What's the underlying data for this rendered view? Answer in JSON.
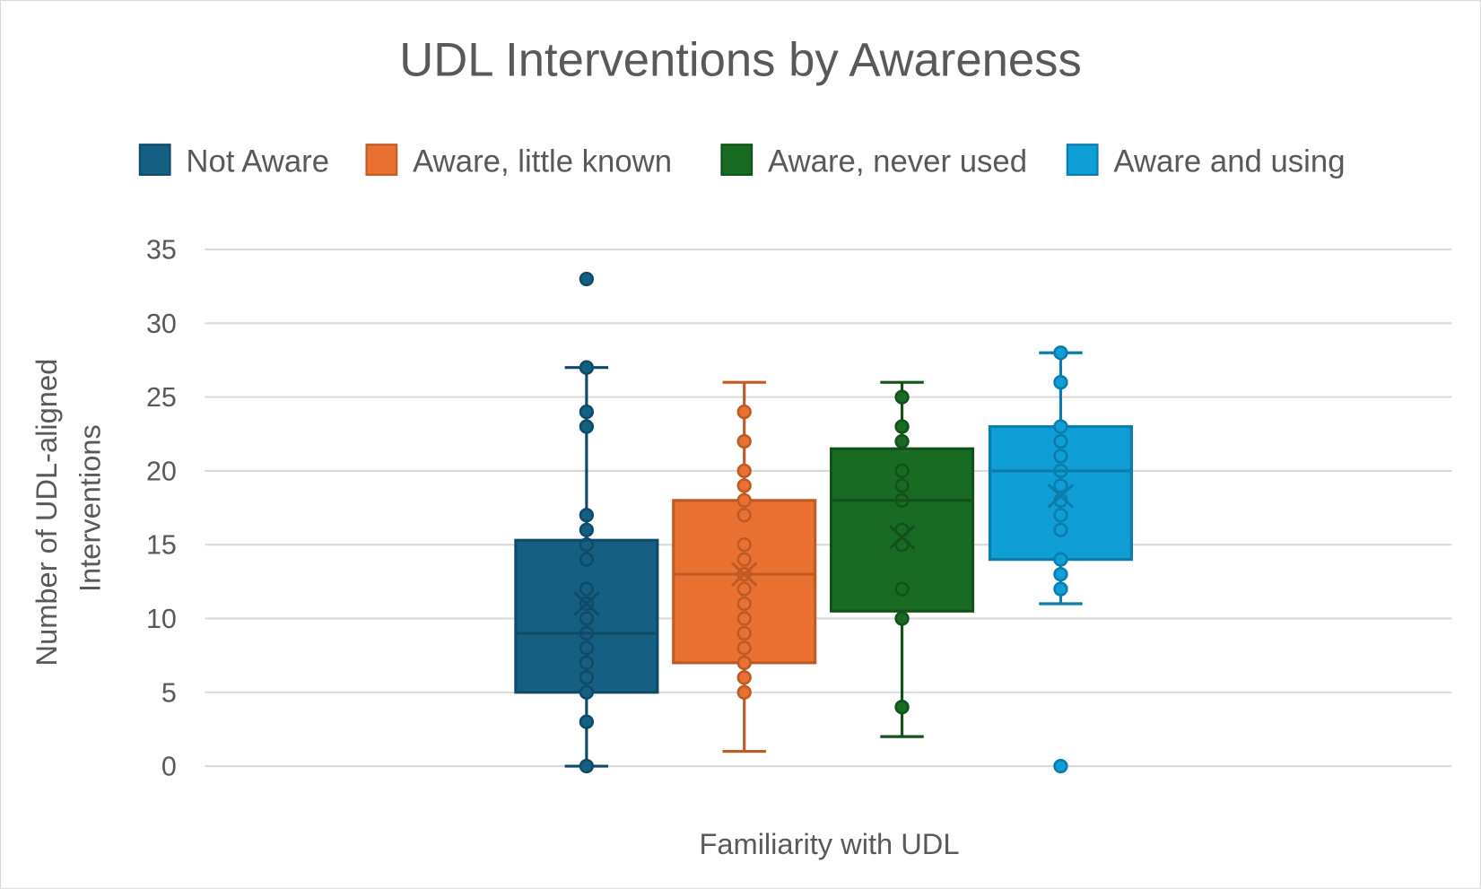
{
  "chart_data": {
    "type": "box",
    "title": "UDL Interventions by Awareness",
    "xlabel": "Familiarity with UDL",
    "ylabel": [
      "Number of UDL-aligned",
      "Interventions"
    ],
    "ylim": [
      0,
      35
    ],
    "yticks": [
      0,
      5,
      10,
      15,
      20,
      25,
      30,
      35
    ],
    "grid": true,
    "legend_position": "top",
    "series": [
      {
        "name": "Not Aware",
        "color": "#156082",
        "edge": "#0f4b67",
        "min": 0,
        "q1": 5,
        "median": 9,
        "q3": 15.3,
        "max": 27,
        "mean": 11,
        "points": [
          0,
          3,
          5,
          6,
          7,
          8,
          9,
          10,
          11,
          12,
          14,
          15,
          16,
          17,
          23,
          24,
          27
        ],
        "outliers": [
          33
        ]
      },
      {
        "name": "Aware, little known",
        "color": "#e97132",
        "edge": "#bf5a26",
        "min": 1,
        "q1": 7,
        "median": 13,
        "q3": 18,
        "max": 26,
        "mean": 13,
        "points": [
          5,
          6,
          7,
          8,
          9,
          10,
          11,
          12,
          13,
          14,
          15,
          17,
          18,
          19,
          20,
          22,
          24
        ],
        "outliers": []
      },
      {
        "name": "Aware, never used",
        "color": "#196b24",
        "edge": "#12511b",
        "min": 2,
        "q1": 10.5,
        "median": 18,
        "q3": 21.5,
        "max": 26,
        "mean": 15.5,
        "points": [
          4,
          10,
          12,
          15,
          16,
          18,
          19,
          20,
          22,
          23,
          25
        ],
        "outliers": []
      },
      {
        "name": "Aware and using",
        "color": "#0f9ed5",
        "edge": "#0b7cab",
        "min": 11,
        "q1": 14,
        "median": 20,
        "q3": 23,
        "max": 28,
        "mean": 18.3,
        "points": [
          12,
          13,
          14,
          16,
          17,
          18,
          19,
          20,
          21,
          22,
          23,
          26,
          28
        ],
        "outliers": [
          0
        ]
      }
    ]
  }
}
